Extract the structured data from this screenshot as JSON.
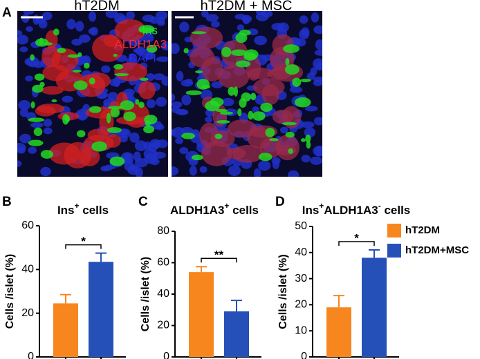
{
  "panel_a": {
    "label": "A",
    "images": [
      {
        "title": "hT2DM"
      },
      {
        "title": "hT2DM + MSC"
      }
    ],
    "stains": [
      {
        "text": "Ins",
        "color": "#22e022"
      },
      {
        "text": "ALDH1A3",
        "color": "#ff2a2a"
      },
      {
        "text": "DAPI",
        "color": "#2a2aff"
      }
    ]
  },
  "legend": {
    "entries": [
      {
        "name": "hT2DM",
        "color": "#f7861f"
      },
      {
        "name": "hT2DM+MSC",
        "color": "#2450b8"
      }
    ]
  },
  "chart_data": [
    {
      "type": "bar",
      "panel": "B",
      "title": [
        {
          "text": "Ins"
        },
        {
          "text": "+",
          "sup": true
        },
        {
          "text": " cells"
        }
      ],
      "ylabel": "Cells /islet (%)",
      "ylim": [
        0,
        60
      ],
      "yticks": [
        0,
        20,
        40,
        60
      ],
      "values": [
        24.5,
        43.5
      ],
      "errors": [
        4,
        4
      ],
      "significance": "*"
    },
    {
      "type": "bar",
      "panel": "C",
      "title": [
        {
          "text": "ALDH1A3"
        },
        {
          "text": "+",
          "sup": true
        },
        {
          "text": " cells"
        }
      ],
      "ylabel": "Cells /islet (%)",
      "ylim": [
        0,
        80
      ],
      "yticks": [
        0,
        20,
        40,
        60,
        80
      ],
      "values": [
        54,
        29
      ],
      "errors": [
        3.5,
        7
      ],
      "significance": "**"
    },
    {
      "type": "bar",
      "panel": "D",
      "title": [
        {
          "text": "Ins"
        },
        {
          "text": "+",
          "sup": true
        },
        {
          "text": "ALDH1A3"
        },
        {
          "text": "-",
          "sup": true
        },
        {
          "text": " cells"
        }
      ],
      "ylabel": "Cells /islet (%)",
      "ylim": [
        0,
        50
      ],
      "yticks": [
        0,
        10,
        20,
        30,
        40,
        50
      ],
      "values": [
        19,
        38
      ],
      "errors": [
        4.5,
        3
      ],
      "significance": "*"
    }
  ]
}
